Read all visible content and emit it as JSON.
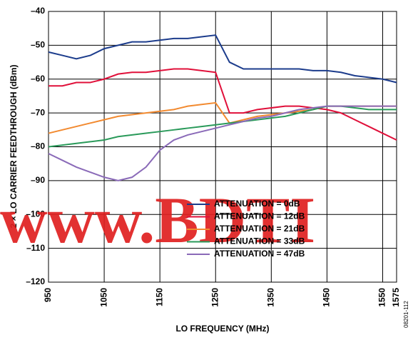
{
  "chart_data": {
    "type": "line",
    "y_label": "2 × LO CARRIER FEEDTHROUGH (dBm)",
    "x_label": "LO FREQUENCY (MHz)",
    "figure_id": "08201-112",
    "watermark": "www.BDTI",
    "x": [
      950,
      975,
      1000,
      1025,
      1050,
      1075,
      1100,
      1125,
      1150,
      1175,
      1200,
      1225,
      1250,
      1275,
      1300,
      1325,
      1350,
      1375,
      1400,
      1425,
      1450,
      1475,
      1500,
      1525,
      1550,
      1575
    ],
    "xlim": [
      950,
      1575
    ],
    "xticks": [
      950,
      1050,
      1150,
      1250,
      1350,
      1450,
      1550,
      1575
    ],
    "ylim": [
      -120,
      -40
    ],
    "yticks": [
      {
        "value": -40,
        "label": "–40"
      },
      {
        "value": -50,
        "label": "–50"
      },
      {
        "value": -60,
        "label": "–60"
      },
      {
        "value": -70,
        "label": "–70"
      },
      {
        "value": -80,
        "label": "–80"
      },
      {
        "value": -90,
        "label": "–90"
      },
      {
        "value": -100,
        "label": "–100"
      },
      {
        "value": -110,
        "label": "–110"
      },
      {
        "value": -120,
        "label": "–120"
      }
    ],
    "grid": true,
    "legend": "center",
    "series": [
      {
        "name": "ATTENUATION = 0dB",
        "color": "#1c3c8c",
        "values": [
          -52,
          -53,
          -54,
          -53,
          -51,
          -50,
          -49,
          -49,
          -48.5,
          -48,
          -48,
          -47.5,
          -47,
          -55,
          -57,
          -57,
          -57,
          -57,
          -57,
          -57.5,
          -57.5,
          -58,
          -59,
          -59.5,
          -60,
          -61
        ]
      },
      {
        "name": "ATTENUATION = 12dB",
        "color": "#e0103a",
        "values": [
          -62,
          -62,
          -61,
          -61,
          -60,
          -58.5,
          -58,
          -58,
          -57.5,
          -57,
          -57,
          -57.5,
          -58,
          -70,
          -70,
          -69,
          -68.5,
          -68,
          -68,
          -68.5,
          -69,
          -70,
          -72,
          -74,
          -76,
          -78
        ]
      },
      {
        "name": "ATTENUATION = 21dB",
        "color": "#f28a30",
        "values": [
          -76,
          -75,
          -74,
          -73,
          -72,
          -71,
          -70.5,
          -70,
          -69.5,
          -69,
          -68,
          -67.5,
          -67,
          -73,
          -72,
          -71,
          -70.5,
          -70,
          -69.5,
          -69,
          -68,
          -68,
          -68,
          -68,
          -68,
          -68
        ]
      },
      {
        "name": "ATTENUATION = 33dB",
        "color": "#2a9a5a",
        "values": [
          -80,
          -79.5,
          -79,
          -78.5,
          -78,
          -77,
          -76.5,
          -76,
          -75.5,
          -75,
          -74.5,
          -74,
          -73.5,
          -73,
          -72.5,
          -72,
          -71.5,
          -71,
          -70,
          -69,
          -68,
          -68,
          -68.5,
          -69,
          -69,
          -69
        ]
      },
      {
        "name": "ATTENUATION = 47dB",
        "color": "#8a6ab8",
        "values": [
          -82,
          -84,
          -86,
          -87.5,
          -89,
          -90,
          -89,
          -86,
          -81,
          -78,
          -76.5,
          -75.5,
          -74.5,
          -73.5,
          -72.5,
          -71.5,
          -71,
          -70,
          -69,
          -68.5,
          -68,
          -68,
          -68,
          -68,
          -68,
          -68
        ]
      }
    ]
  }
}
